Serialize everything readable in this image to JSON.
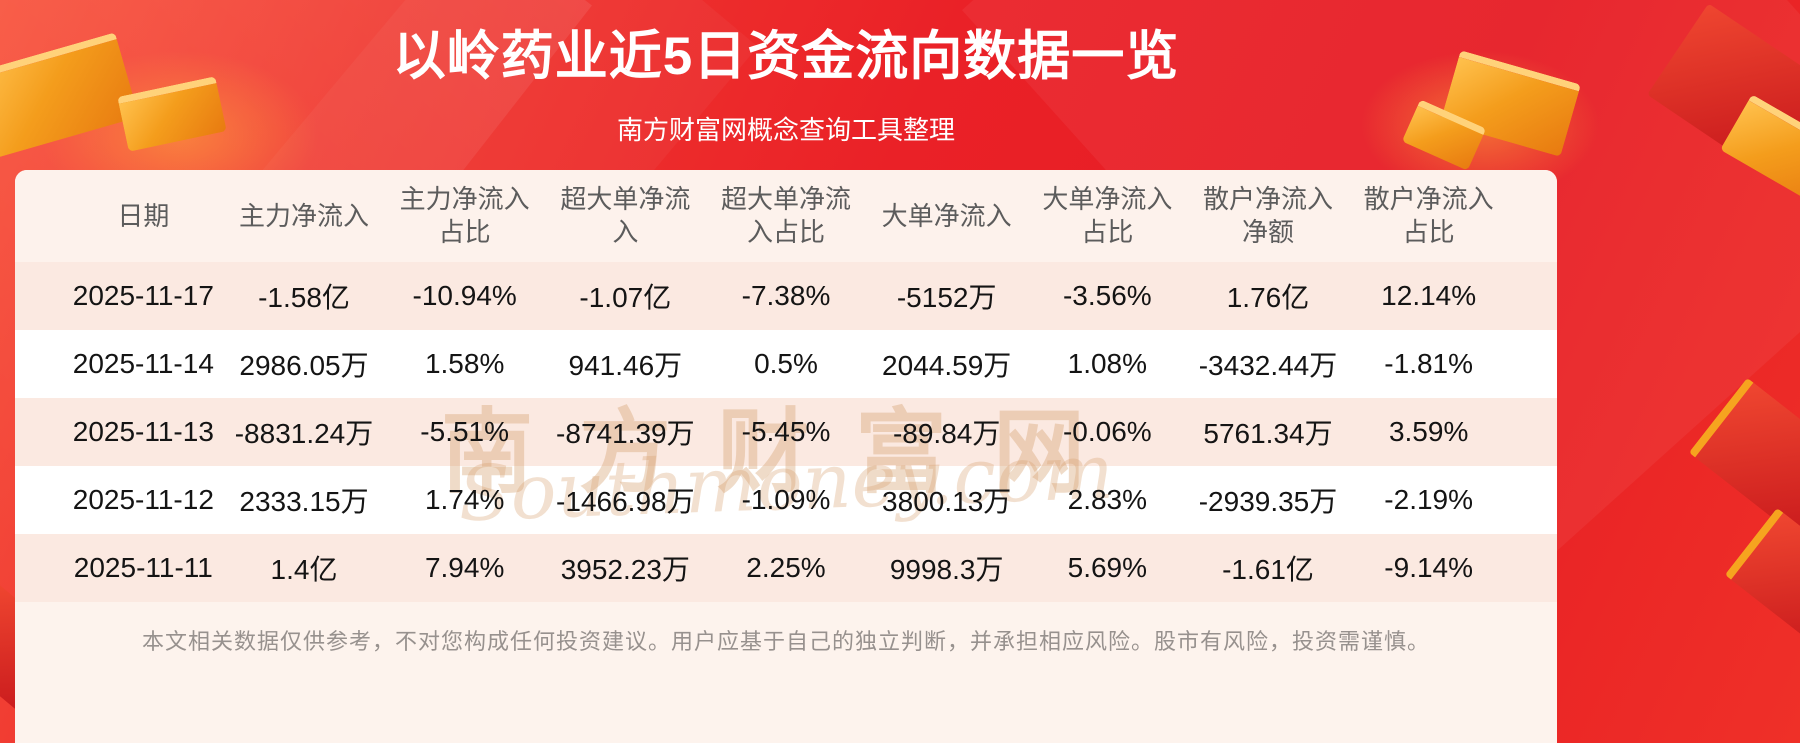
{
  "header": {
    "title": "以岭药业近5日资金流向数据一览",
    "subtitle": "南方财富网概念查询工具整理"
  },
  "watermark": {
    "cn": "南方财富网",
    "en": "Southmoney.com"
  },
  "footer": {
    "disclaimer": "本文相关数据仅供参考，不对您构成任何投资建议。用户应基于自己的独立判断，并承担相应风险。股市有风险，投资需谨慎。"
  },
  "colors": {
    "background_red": "#ea2127",
    "accent_gold": "#f49d1c",
    "header_pink": "#fdf2ec",
    "stripe_pink": "#fbe9e1",
    "title_color": "#ffffff",
    "header_text": "#5c5c5c",
    "text_dark": "#141414",
    "disclaimer_text": "#97918e",
    "watermark_tan": "#d6a06e"
  },
  "chart_data": {
    "type": "table",
    "title": "以岭药业近5日资金流向数据一览",
    "columns": [
      {
        "label": "日期",
        "lines": [
          "日期"
        ]
      },
      {
        "label": "主力净流入",
        "lines": [
          "主力净流入"
        ]
      },
      {
        "label": "主力净流入占比",
        "lines": [
          "主力净流入",
          "占比"
        ]
      },
      {
        "label": "超大单净流入",
        "lines": [
          "超大单净流",
          "入"
        ]
      },
      {
        "label": "超大单净流入占比",
        "lines": [
          "超大单净流",
          "入占比"
        ]
      },
      {
        "label": "大单净流入",
        "lines": [
          "大单净流入"
        ]
      },
      {
        "label": "大单净流入占比",
        "lines": [
          "大单净流入",
          "占比"
        ]
      },
      {
        "label": "散户净流入净额",
        "lines": [
          "散户净流入",
          "净额"
        ]
      },
      {
        "label": "散户净流入占比",
        "lines": [
          "散户净流入",
          "占比"
        ]
      }
    ],
    "rows": [
      [
        "2025-11-17",
        "-1.58亿",
        "-10.94%",
        "-1.07亿",
        "-7.38%",
        "-5152万",
        "-3.56%",
        "1.76亿",
        "12.14%"
      ],
      [
        "2025-11-14",
        "2986.05万",
        "1.58%",
        "941.46万",
        "0.5%",
        "2044.59万",
        "1.08%",
        "-3432.44万",
        "-1.81%"
      ],
      [
        "2025-11-13",
        "-8831.24万",
        "-5.51%",
        "-8741.39万",
        "-5.45%",
        "-89.84万",
        "-0.06%",
        "5761.34万",
        "3.59%"
      ],
      [
        "2025-11-12",
        "2333.15万",
        "1.74%",
        "-1466.98万",
        "-1.09%",
        "3800.13万",
        "2.83%",
        "-2939.35万",
        "-2.19%"
      ],
      [
        "2025-11-11",
        "1.4亿",
        "7.94%",
        "3952.23万",
        "2.25%",
        "9998.3万",
        "5.69%",
        "-1.61亿",
        "-9.14%"
      ]
    ]
  }
}
